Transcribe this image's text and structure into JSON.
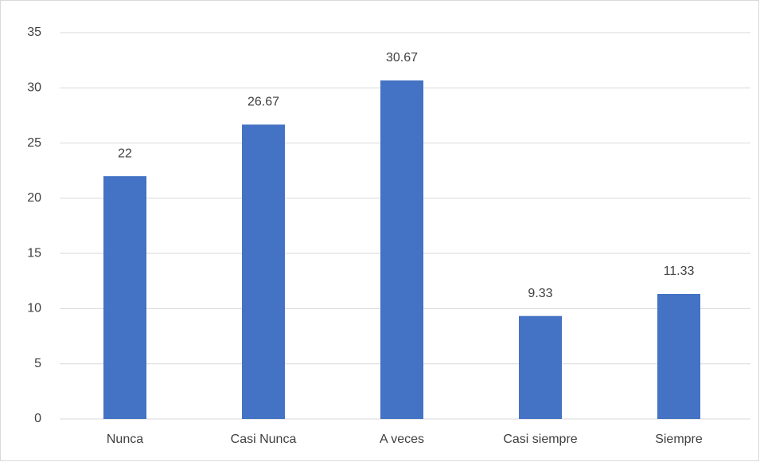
{
  "chart_data": {
    "type": "bar",
    "categories": [
      "Nunca",
      "Casi Nunca",
      "A veces",
      "Casi siempre",
      "Siempre"
    ],
    "values": [
      22,
      26.67,
      30.67,
      9.33,
      11.33
    ],
    "color": "#4472c4",
    "ylim": [
      0,
      35
    ],
    "yticks": [
      0,
      5,
      10,
      15,
      20,
      25,
      30,
      35
    ],
    "grid": true
  }
}
